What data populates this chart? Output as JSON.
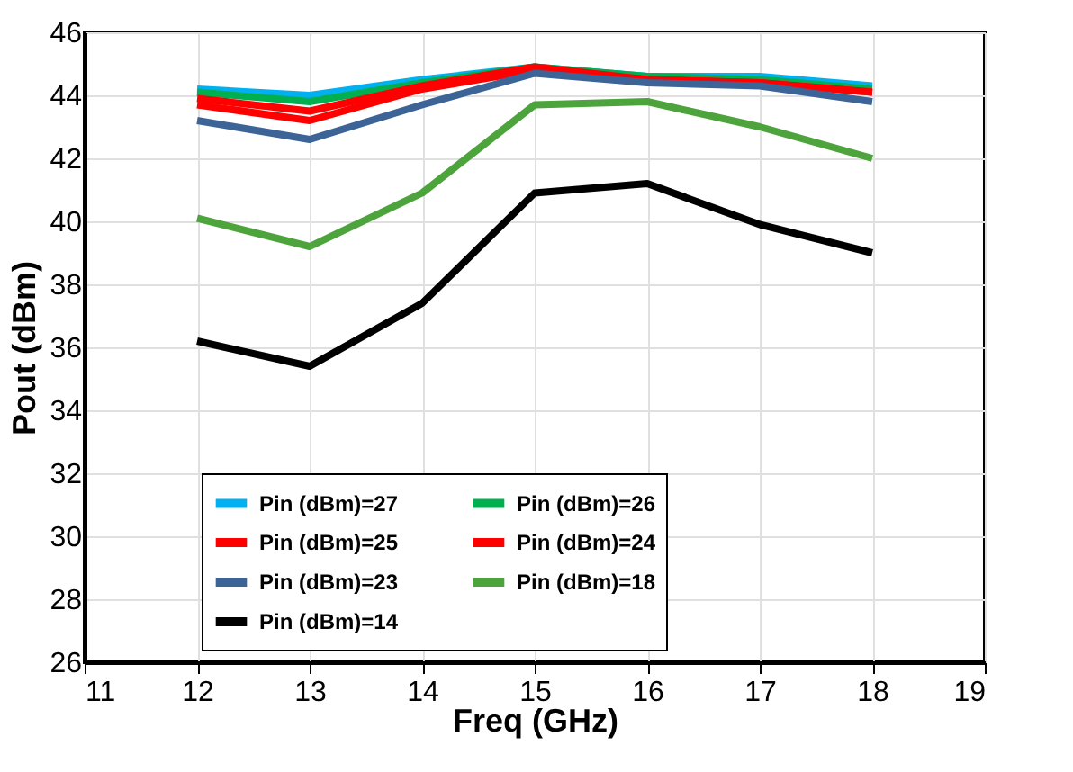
{
  "chart_data": {
    "type": "line",
    "xlabel": "Freq (GHz)",
    "ylabel": "Pout (dBm)",
    "x": [
      12,
      13,
      14,
      15,
      16,
      17,
      18
    ],
    "xlim": [
      11,
      19
    ],
    "xticks": [
      11,
      12,
      13,
      14,
      15,
      16,
      17,
      18,
      19
    ],
    "ylim": [
      26,
      46
    ],
    "yticks": [
      26,
      28,
      30,
      32,
      34,
      36,
      38,
      40,
      42,
      44,
      46
    ],
    "grid": true,
    "legend": "bottom",
    "marker": "none",
    "line_style": "solid",
    "series": [
      {
        "name": "Pin (dBm)=27",
        "color": "#00b0f0",
        "values": [
          44.2,
          44.0,
          44.5,
          44.9,
          44.6,
          44.6,
          44.3
        ]
      },
      {
        "name": "Pin (dBm)=26",
        "color": "#00b050",
        "values": [
          44.1,
          43.8,
          44.4,
          44.9,
          44.6,
          44.5,
          44.2
        ]
      },
      {
        "name": "Pin (dBm)=25",
        "color": "#ff0000",
        "values": [
          43.9,
          43.5,
          44.3,
          44.9,
          44.5,
          44.4,
          44.1
        ]
      },
      {
        "name": "Pin (dBm)=24",
        "color": "#ff0000",
        "values": [
          43.7,
          43.2,
          44.2,
          44.8,
          44.5,
          44.4,
          44.1
        ]
      },
      {
        "name": "Pin (dBm)=23",
        "color": "#3c6496",
        "values": [
          43.2,
          42.6,
          43.7,
          44.7,
          44.4,
          44.3,
          43.8
        ]
      },
      {
        "name": "Pin (dBm)=18",
        "color": "#4ea43c",
        "values": [
          40.1,
          39.2,
          40.9,
          43.7,
          43.8,
          43.0,
          42.0
        ]
      },
      {
        "name": "Pin (dBm)=14",
        "color": "#000000",
        "values": [
          36.2,
          35.4,
          37.4,
          40.9,
          41.2,
          39.9,
          39.0
        ]
      }
    ]
  }
}
